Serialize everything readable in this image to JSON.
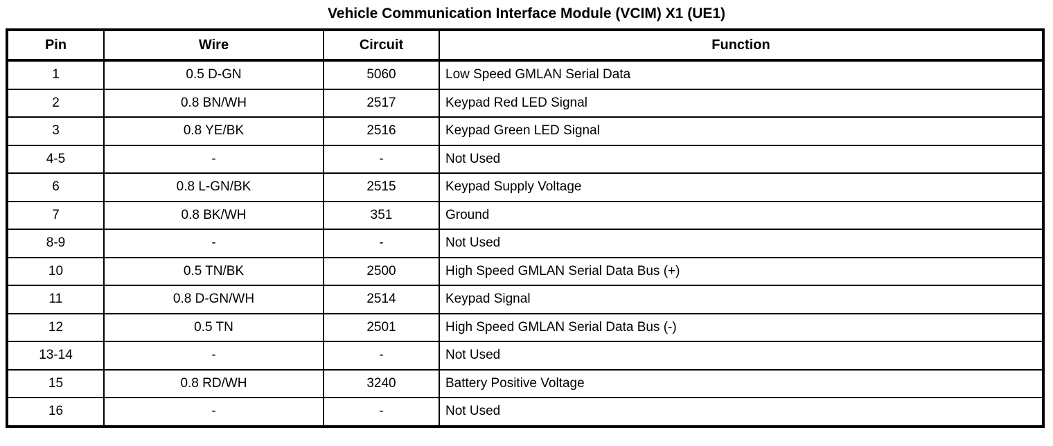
{
  "title": "Vehicle Communication Interface Module (VCIM) X1 (UE1)",
  "table": {
    "columns": [
      "Pin",
      "Wire",
      "Circuit",
      "Function"
    ],
    "rows": [
      {
        "pin": "1",
        "wire": "0.5 D-GN",
        "circuit": "5060",
        "function": "Low Speed GMLAN Serial Data"
      },
      {
        "pin": "2",
        "wire": "0.8 BN/WH",
        "circuit": "2517",
        "function": "Keypad Red LED Signal"
      },
      {
        "pin": "3",
        "wire": "0.8 YE/BK",
        "circuit": "2516",
        "function": "Keypad Green LED Signal"
      },
      {
        "pin": "4-5",
        "wire": "-",
        "circuit": "-",
        "function": "Not Used"
      },
      {
        "pin": "6",
        "wire": "0.8 L-GN/BK",
        "circuit": "2515",
        "function": "Keypad Supply Voltage"
      },
      {
        "pin": "7",
        "wire": "0.8 BK/WH",
        "circuit": "351",
        "function": "Ground"
      },
      {
        "pin": "8-9",
        "wire": "-",
        "circuit": "-",
        "function": "Not Used"
      },
      {
        "pin": "10",
        "wire": "0.5 TN/BK",
        "circuit": "2500",
        "function": "High Speed GMLAN Serial Data Bus (+)"
      },
      {
        "pin": "11",
        "wire": "0.8 D-GN/WH",
        "circuit": "2514",
        "function": "Keypad Signal"
      },
      {
        "pin": "12",
        "wire": "0.5 TN",
        "circuit": "2501",
        "function": "High Speed GMLAN Serial Data Bus (-)"
      },
      {
        "pin": "13-14",
        "wire": "-",
        "circuit": "-",
        "function": "Not Used"
      },
      {
        "pin": "15",
        "wire": "0.8 RD/WH",
        "circuit": "3240",
        "function": "Battery Positive Voltage"
      },
      {
        "pin": "16",
        "wire": "-",
        "circuit": "-",
        "function": "Not Used"
      }
    ]
  }
}
